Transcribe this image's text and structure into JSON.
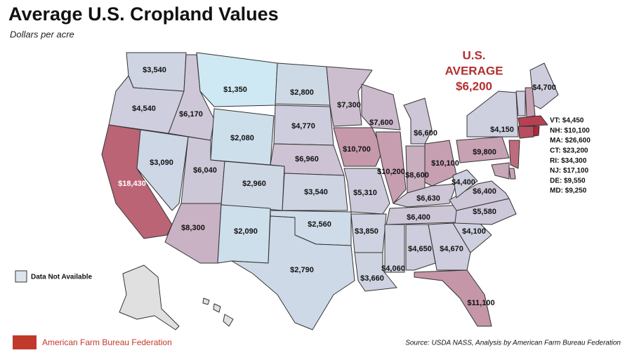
{
  "title": "Average U.S. Cropland Values",
  "subtitle": "Dollars per acre",
  "average": {
    "line1": "U.S.",
    "line2": "AVERAGE",
    "value": 6200,
    "label": "$6,200"
  },
  "legend": {
    "label": "Data Not Available"
  },
  "states": [
    {
      "value": 3540,
      "label": "$3,540"
    },
    {
      "value": 4540,
      "label": "$4,540"
    },
    {
      "value": 18430,
      "label": "$18,430"
    },
    {
      "value": 3090,
      "label": "$3,090"
    },
    {
      "value": 6170,
      "label": "$6,170"
    },
    {
      "value": 1350,
      "label": "$1,350"
    },
    {
      "value": 2080,
      "label": "$2,080"
    },
    {
      "value": 6040,
      "label": "$6,040"
    },
    {
      "value": 8300,
      "label": "$8,300"
    },
    {
      "value": 2960,
      "label": "$2,960"
    },
    {
      "value": 2090,
      "label": "$2,090"
    },
    {
      "value": 2800,
      "label": "$2,800"
    },
    {
      "value": 4770,
      "label": "$4,770"
    },
    {
      "value": 6960,
      "label": "$6,960"
    },
    {
      "value": 3540,
      "label": "$3,540"
    },
    {
      "value": 2560,
      "label": "$2,560"
    },
    {
      "value": 2790,
      "label": "$2,790"
    },
    {
      "value": 7300,
      "label": "$7,300"
    },
    {
      "value": 10700,
      "label": "$10,700"
    },
    {
      "value": 5310,
      "label": "$5,310"
    },
    {
      "value": 3850,
      "label": "$3,850"
    },
    {
      "value": 3660,
      "label": "$3,660"
    },
    {
      "value": 7600,
      "label": "$7,600"
    },
    {
      "value": 10200,
      "label": "$10,200"
    },
    {
      "value": 6600,
      "label": "$6,600"
    },
    {
      "value": 8600,
      "label": "$8,600"
    },
    {
      "value": 10100,
      "label": "$10,100"
    },
    {
      "value": 6630,
      "label": "$6,630"
    },
    {
      "value": 6400,
      "label": "$6,400"
    },
    {
      "value": 4060,
      "label": "$4,060"
    },
    {
      "value": 4650,
      "label": "$4,650"
    },
    {
      "value": 4670,
      "label": "$4,670"
    },
    {
      "value": 11100,
      "label": "$11,100"
    },
    {
      "value": 4100,
      "label": "$4,100"
    },
    {
      "value": 5580,
      "label": "$5,580"
    },
    {
      "value": 6400,
      "label": "$6,400"
    },
    {
      "value": 4400,
      "label": "$4,400"
    },
    {
      "value": 9800,
      "label": "$9,800"
    },
    {
      "value": 4150,
      "label": "$4,150"
    },
    {
      "value": 4700,
      "label": "$4,700"
    }
  ],
  "callouts": [
    {
      "text": "VT: $4,450",
      "value": 4450
    },
    {
      "text": "NH: $10,100",
      "value": 10100
    },
    {
      "text": "MA: $26,600",
      "value": 26600
    },
    {
      "text": "CT: $23,200",
      "value": 23200
    },
    {
      "text": "RI: $34,300",
      "value": 34300
    },
    {
      "text": "NJ: $17,100",
      "value": 17100
    },
    {
      "text": "DE: $9,550",
      "value": 9550
    },
    {
      "text": "MD: $9,250",
      "value": 9250
    }
  ],
  "footer": {
    "org": "American Farm Bureau Federation",
    "source": "Source: USDA NASS, Analysis by American Farm Bureau Federation"
  }
}
